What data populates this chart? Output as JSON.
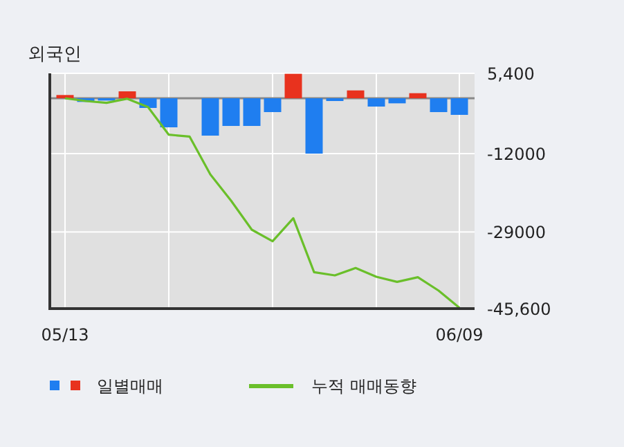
{
  "chart_data": {
    "type": "bar",
    "title": "외국인",
    "categories": [
      "05/13",
      null,
      null,
      null,
      null,
      null,
      null,
      null,
      null,
      null,
      null,
      null,
      null,
      null,
      null,
      null,
      null,
      null,
      null,
      "06/09"
    ],
    "series": [
      {
        "name": "일별매매",
        "colors": [
          "#e8321e",
          "#1f7ef0",
          "#1f7ef0",
          "#e8321e",
          "#1f7ef0",
          "#1f7ef0",
          "#1f7ef0",
          "#1f7ef0",
          "#1f7ef0",
          "#1f7ef0",
          "#1f7ef0",
          "#e8321e",
          "#1f7ef0",
          "#1f7ef0",
          "#e8321e",
          "#1f7ef0",
          "#1f7ef0",
          "#e8321e",
          "#1f7ef0",
          "#1f7ef0"
        ],
        "values": [
          700,
          -800,
          -500,
          1500,
          -2100,
          -6300,
          0,
          -8100,
          -6000,
          -6000,
          -3000,
          5300,
          -12000,
          -600,
          1700,
          -1800,
          -1100,
          1100,
          -3000,
          -3600
        ]
      },
      {
        "name": "누적 매매동향",
        "type": "line",
        "color": "#6abf2a",
        "values": [
          0,
          -600,
          -1000,
          -100,
          -1900,
          -7900,
          -8300,
          -16500,
          -22200,
          -28500,
          -31000,
          -26000,
          -37700,
          -38400,
          -36800,
          -38700,
          -39800,
          -38800,
          -41700,
          -45400
        ]
      }
    ],
    "ylim": [
      -45600,
      5400
    ],
    "yticks": [
      {
        "value": 5400,
        "label": "5,400"
      },
      -12000,
      -29000,
      {
        "value": -45600,
        "label": "-45,600"
      }
    ],
    "ref_lines": [
      {
        "axis": "y",
        "value": 0,
        "color": "#888888"
      }
    ],
    "grid": true,
    "legend": "bottom",
    "marker": "none"
  }
}
